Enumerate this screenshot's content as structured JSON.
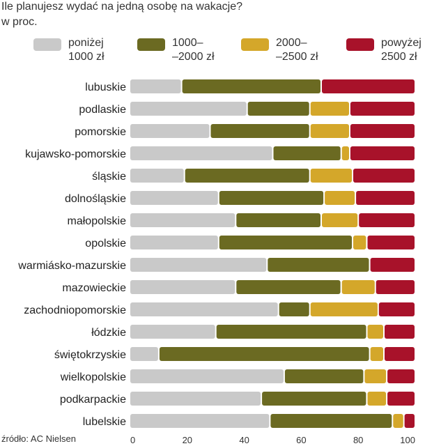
{
  "header": {
    "title": "Ile planujesz wydać na jedną osobę na wakacje?",
    "subtitle": "w proc."
  },
  "legend": [
    {
      "line1": "poniżej",
      "line2": "1000 zł",
      "color": "#c9c9c9"
    },
    {
      "line1": "1000–",
      "line2": "–2000 zł",
      "color": "#6b6a22"
    },
    {
      "line1": "2000–",
      "line2": "–2500 zł",
      "color": "#d4a72a"
    },
    {
      "line1": "powyżej",
      "line2": "2500 zł",
      "color": "#a8122a"
    }
  ],
  "source": "źródło: AC Nielsen",
  "chart_data": {
    "type": "bar",
    "orientation": "horizontal",
    "stacked": true,
    "categories": [
      "lubuskie",
      "podlaskie",
      "pomorskie",
      "kujawsko-pomorskie",
      "śląskie",
      "dolnośląskie",
      "małopolskie",
      "opolskie",
      "warmiásko-mazurskie",
      "mazowieckie",
      "zachodniopomorskie",
      "łódzkie",
      "świętokrzyskie",
      "wielkopolskie",
      "podkarpackie",
      "lubelskie"
    ],
    "series": [
      {
        "name": "poniżej 1000 zł",
        "color": "#c9c9c9",
        "values": [
          18,
          41,
          28,
          50,
          19,
          31,
          37,
          31,
          48,
          37,
          52,
          30,
          10,
          54,
          46,
          49
        ]
      },
      {
        "name": "1000–2000 zł",
        "color": "#6b6a22",
        "values": [
          49,
          22,
          35,
          24,
          44,
          37,
          30,
          47,
          36,
          37,
          11,
          53,
          74,
          28,
          37,
          43
        ]
      },
      {
        "name": "2000–2500 zł",
        "color": "#d4a72a",
        "values": [
          0,
          14,
          14,
          3,
          15,
          11,
          13,
          5,
          0,
          12,
          24,
          6,
          5,
          8,
          7,
          4
        ]
      },
      {
        "name": "powyżej 2500 zł",
        "color": "#a8122a",
        "values": [
          33,
          23,
          23,
          23,
          22,
          21,
          20,
          17,
          16,
          14,
          13,
          11,
          11,
          10,
          10,
          4
        ]
      }
    ],
    "x_ticks": [
      "0",
      "20",
      "40",
      "60",
      "80",
      "100"
    ],
    "xlim": [
      0,
      100
    ],
    "grid": false,
    "legend_position": "top"
  }
}
